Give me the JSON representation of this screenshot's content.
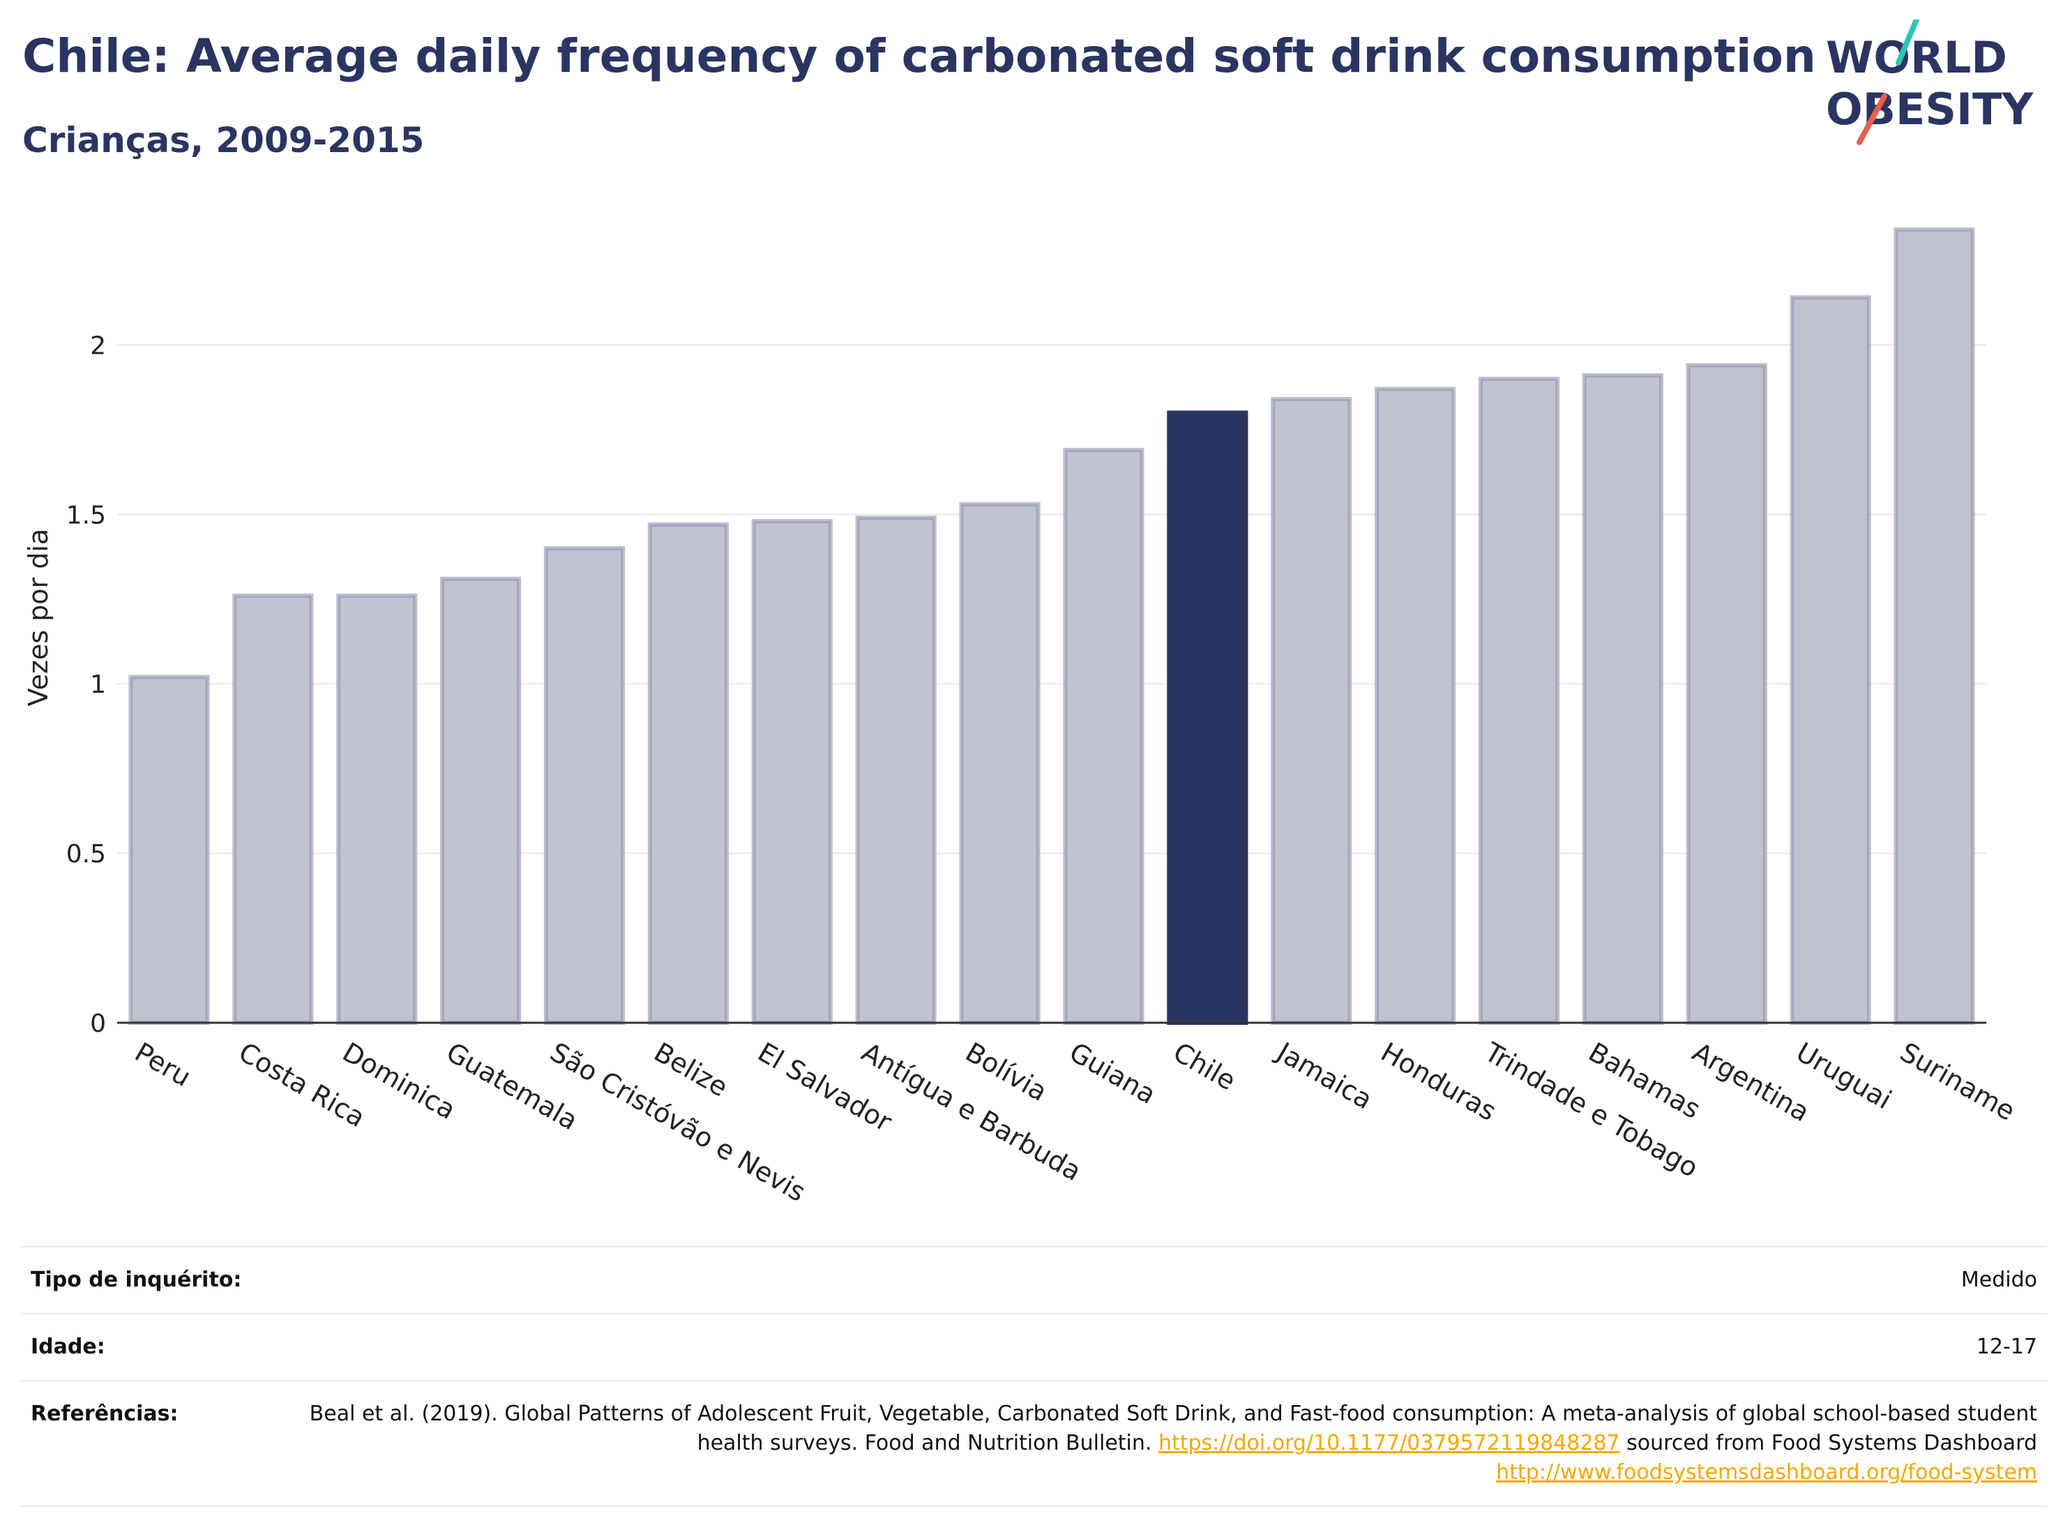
{
  "header": {
    "title": "Chile: Average daily frequency of carbonated soft drink consumption",
    "subtitle": "Crianças, 2009-2015"
  },
  "logo": {
    "line1": "WORLD",
    "line2": "OBESITY",
    "line1_color": "#2b3561",
    "line2_color": "#2b3561",
    "slash_top_color": "#2ec4b6",
    "slash_bottom_color": "#e8604c"
  },
  "chart_data": {
    "type": "bar",
    "ylabel": "Vezes por dia",
    "ylim": [
      0,
      2.4
    ],
    "yticks": [
      0,
      0.5,
      1,
      1.5,
      2
    ],
    "ytick_labels": [
      "0",
      "0.5",
      "1",
      "1.5",
      "2"
    ],
    "grid": true,
    "highlight": "Chile",
    "categories": [
      "Peru",
      "Costa Rica",
      "Dominica",
      "Guatemala",
      "São Cristóvão e Nevis",
      "Belize",
      "El Salvador",
      "Antígua e Barbuda",
      "Bolívia",
      "Guiana",
      "Chile",
      "Jamaica",
      "Honduras",
      "Trindade e Tobago",
      "Bahamas",
      "Argentina",
      "Uruguai",
      "Suriname"
    ],
    "values": [
      1.02,
      1.26,
      1.26,
      1.31,
      1.4,
      1.47,
      1.48,
      1.49,
      1.53,
      1.69,
      1.8,
      1.84,
      1.87,
      1.9,
      1.91,
      1.94,
      2.14,
      2.34
    ],
    "colors": {
      "bar": "#bfc3d0",
      "bar_border": "#8e95ad",
      "highlight": "#2b3561"
    }
  },
  "details": {
    "survey_type": {
      "label": "Tipo de inquérito:",
      "value": "Medido"
    },
    "age": {
      "label": "Idade:",
      "value": "12-17"
    },
    "references": {
      "label": "Referências:",
      "text1": "Beal et al. (2019). Global Patterns of Adolescent Fruit, Vegetable, Carbonated Soft Drink, and Fast-food consumption: A meta-analysis of global school-based student health surveys. Food and Nutrition Bulletin. ",
      "link1": "https://doi.org/10.1177/0379572119848287",
      "text2": " sourced from Food Systems Dashboard ",
      "link2": "http://www.foodsystemsdashboard.org/food-system"
    }
  }
}
